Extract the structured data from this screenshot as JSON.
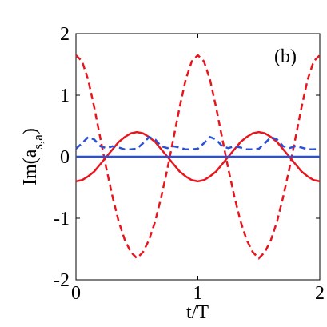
{
  "chart_data": {
    "type": "line",
    "annotation": "(b)",
    "x_label": "t/T",
    "y_label": [
      "Im(a",
      "s,a",
      ")"
    ],
    "x": [
      0,
      0.05,
      0.1,
      0.15,
      0.2,
      0.25,
      0.3,
      0.35,
      0.4,
      0.45,
      0.5,
      0.55,
      0.6,
      0.65,
      0.7,
      0.75,
      0.8,
      0.85,
      0.9,
      0.95,
      1,
      1.05,
      1.1,
      1.15,
      1.2,
      1.25,
      1.3,
      1.35,
      1.4,
      1.45,
      1.5,
      1.55,
      1.6,
      1.65,
      1.7,
      1.75,
      1.8,
      1.85,
      1.9,
      1.95,
      2
    ],
    "series": [
      {
        "color": "#e8161c",
        "dash": true,
        "values": [
          1.65,
          1.55,
          1.25,
          0.8,
          0.3,
          -0.2,
          -0.65,
          -1.05,
          -1.35,
          -1.55,
          -1.65,
          -1.55,
          -1.35,
          -1.05,
          -0.65,
          -0.2,
          0.3,
          0.8,
          1.25,
          1.55,
          1.65,
          1.55,
          1.25,
          0.8,
          0.3,
          -0.2,
          -0.65,
          -1.05,
          -1.35,
          -1.55,
          -1.65,
          -1.55,
          -1.35,
          -1.05,
          -0.65,
          -0.2,
          0.3,
          0.8,
          1.25,
          1.55,
          1.65
        ]
      },
      {
        "color": "#e8161c",
        "dash": false,
        "values": [
          -0.4,
          -0.38,
          -0.32,
          -0.24,
          -0.12,
          0,
          0.12,
          0.24,
          0.32,
          0.38,
          0.4,
          0.38,
          0.32,
          0.24,
          0.12,
          0,
          -0.12,
          -0.24,
          -0.32,
          -0.38,
          -0.4,
          -0.38,
          -0.32,
          -0.24,
          -0.12,
          0,
          0.12,
          0.24,
          0.32,
          0.38,
          0.4,
          0.38,
          0.32,
          0.24,
          0.12,
          0,
          -0.12,
          -0.24,
          -0.32,
          -0.38,
          -0.4
        ]
      },
      {
        "color": "#2a4fd8",
        "dash": true,
        "values": [
          0.13,
          0.22,
          0.32,
          0.28,
          0.17,
          0.14,
          0.17,
          0.15,
          0.12,
          0.12,
          0.13,
          0.22,
          0.32,
          0.28,
          0.17,
          0.14,
          0.17,
          0.15,
          0.12,
          0.12,
          0.13,
          0.22,
          0.32,
          0.28,
          0.17,
          0.14,
          0.17,
          0.15,
          0.12,
          0.12,
          0.13,
          0.22,
          0.32,
          0.28,
          0.17,
          0.14,
          0.17,
          0.15,
          0.12,
          0.12,
          0.13
        ]
      },
      {
        "color": "#2a4fd8",
        "dash": false,
        "values": [
          0,
          0,
          0,
          0,
          0,
          0,
          0,
          0,
          0,
          0,
          0,
          0,
          0,
          0,
          0,
          0,
          0,
          0,
          0,
          0,
          0,
          0,
          0,
          0,
          0,
          0,
          0,
          0,
          0,
          0,
          0,
          0,
          0,
          0,
          0,
          0,
          0,
          0,
          0,
          0,
          0
        ]
      }
    ],
    "xlim": [
      0,
      2
    ],
    "xticks": [
      0,
      1,
      2
    ],
    "ylim": [
      -2,
      2
    ],
    "yticks": [
      -2,
      -1,
      0,
      1,
      2
    ]
  }
}
